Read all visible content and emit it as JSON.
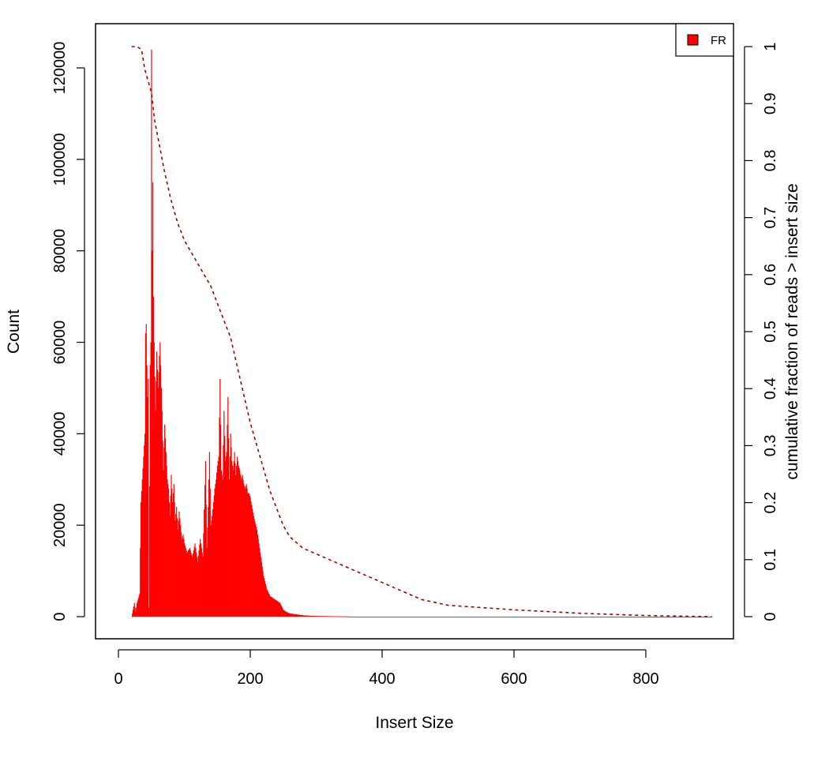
{
  "chart_data": {
    "type": "bar",
    "xlabel": "Insert Size",
    "ylabel": "Count",
    "y2label": "cumulative fraction of reads > insert size",
    "xlim": [
      0,
      900
    ],
    "ylim": [
      0,
      125000
    ],
    "y2lim": [
      0,
      1
    ],
    "x_ticks": [
      "0",
      "200",
      "400",
      "600",
      "800"
    ],
    "y_ticks": [
      "0",
      "20000",
      "40000",
      "60000",
      "80000",
      "100000",
      "120000"
    ],
    "y2_ticks": [
      "0",
      "0.1",
      "0.2",
      "0.3",
      "0.4",
      "0.5",
      "0.6",
      "0.7",
      "0.8",
      "0.9",
      "1"
    ],
    "legend": {
      "position": "top-right",
      "entries": [
        "FR"
      ]
    },
    "colors": {
      "bars": "#ff0000",
      "cumulative_line": "#a50000",
      "legend_swatch": "#ff0000"
    },
    "grid": false,
    "series": [
      {
        "name": "FR",
        "kind": "histogram",
        "x": [
          20,
          24,
          26,
          28,
          30,
          32,
          34,
          36,
          38,
          40,
          41,
          42,
          43,
          44,
          45,
          46,
          48,
          49,
          50,
          51,
          52,
          53,
          54,
          56,
          58,
          60,
          62,
          63,
          64,
          66,
          68,
          70,
          72,
          74,
          76,
          78,
          80,
          82,
          84,
          86,
          88,
          90,
          92,
          94,
          96,
          98,
          100,
          104,
          108,
          112,
          116,
          120,
          124,
          128,
          132,
          134,
          136,
          138,
          140,
          142,
          144,
          146,
          148,
          150,
          152,
          154,
          156,
          158,
          160,
          162,
          164,
          166,
          168,
          170,
          172,
          174,
          176,
          178,
          180,
          182,
          184,
          186,
          188,
          190,
          192,
          194,
          196,
          198,
          200,
          205,
          210,
          215,
          220,
          225,
          230,
          235,
          240,
          245,
          250,
          255,
          260,
          270,
          280,
          290,
          300,
          320,
          340,
          360,
          375,
          390,
          410,
          430,
          450,
          470,
          500,
          550,
          600,
          650,
          700,
          750,
          800,
          850,
          900
        ],
        "y": [
          0,
          3000,
          1000,
          3000,
          4000,
          5000,
          25000,
          30000,
          35000,
          40000,
          62000,
          64000,
          55000,
          48000,
          52000,
          2000,
          55000,
          60000,
          124000,
          80000,
          95000,
          70000,
          60000,
          45000,
          58000,
          50000,
          57000,
          60000,
          55000,
          45000,
          32000,
          42000,
          36000,
          30000,
          28000,
          22000,
          31000,
          25000,
          29000,
          21000,
          24000,
          19000,
          23000,
          20000,
          17000,
          18000,
          16000,
          14000,
          15000,
          13000,
          16000,
          12000,
          17000,
          13000,
          34000,
          15000,
          24000,
          36000,
          20000,
          22000,
          25000,
          28000,
          30000,
          33000,
          35000,
          52000,
          32000,
          30000,
          45000,
          34000,
          36000,
          48000,
          30000,
          40000,
          34000,
          32000,
          36000,
          31000,
          35000,
          33000,
          32000,
          30000,
          31000,
          29000,
          28000,
          29000,
          27000,
          27000,
          26000,
          22000,
          19000,
          14000,
          9000,
          6000,
          4500,
          4000,
          3500,
          3000,
          1500,
          1000,
          700,
          500,
          300,
          200,
          150,
          100,
          60,
          0,
          0,
          0,
          0,
          0,
          0,
          0,
          0,
          0,
          0,
          0,
          0,
          0,
          0,
          0,
          0
        ]
      },
      {
        "name": "",
        "kind": "cumulative_fraction",
        "axis": "right",
        "x": [
          20,
          28,
          35,
          40,
          45,
          50,
          55,
          60,
          65,
          70,
          80,
          90,
          100,
          110,
          120,
          130,
          140,
          150,
          160,
          170,
          180,
          190,
          200,
          210,
          220,
          230,
          240,
          250,
          260,
          270,
          280,
          300,
          320,
          340,
          360,
          380,
          400,
          420,
          440,
          460,
          480,
          500,
          550,
          600,
          650,
          700,
          750,
          800,
          850,
          900
        ],
        "y": [
          1.0,
          1.0,
          0.995,
          0.96,
          0.94,
          0.92,
          0.87,
          0.84,
          0.81,
          0.78,
          0.73,
          0.69,
          0.66,
          0.64,
          0.62,
          0.6,
          0.58,
          0.55,
          0.52,
          0.49,
          0.44,
          0.39,
          0.34,
          0.3,
          0.26,
          0.22,
          0.19,
          0.16,
          0.14,
          0.13,
          0.12,
          0.11,
          0.1,
          0.09,
          0.08,
          0.07,
          0.06,
          0.05,
          0.04,
          0.03,
          0.025,
          0.02,
          0.016,
          0.012,
          0.009,
          0.006,
          0.004,
          0.002,
          0.001,
          0.0
        ]
      }
    ]
  }
}
